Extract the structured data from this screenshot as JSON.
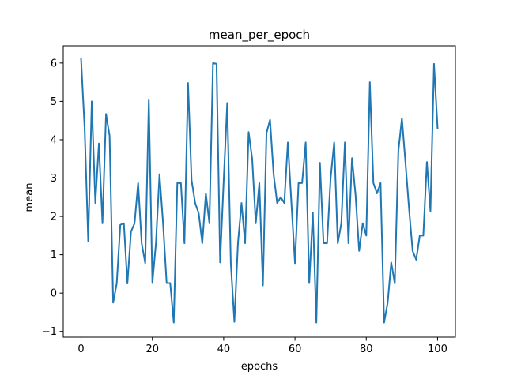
{
  "chart_data": {
    "type": "line",
    "title": "mean_per_epoch",
    "xlabel": "epochs",
    "ylabel": "mean",
    "xlim": [
      -5,
      105
    ],
    "ylim": [
      -1.15,
      6.45
    ],
    "x_ticks": [
      0,
      20,
      40,
      60,
      80,
      100
    ],
    "y_ticks": [
      -1,
      0,
      1,
      2,
      3,
      4,
      5,
      6
    ],
    "grid": false,
    "line_color": "#1f77b4",
    "series": [
      {
        "values": [
          6.1,
          4.3,
          1.35,
          5.0,
          2.35,
          3.9,
          1.82,
          4.67,
          4.1,
          -0.25,
          0.25,
          1.78,
          1.82,
          0.25,
          1.6,
          1.82,
          2.87,
          1.3,
          0.78,
          5.03,
          0.26,
          1.3,
          3.1,
          1.82,
          0.26,
          0.26,
          -0.77,
          2.87,
          2.87,
          1.3,
          5.48,
          2.94,
          2.35,
          2.08,
          1.3,
          2.6,
          1.82,
          6.0,
          5.98,
          0.8,
          2.93,
          4.96,
          0.78,
          -0.75,
          1.3,
          2.35,
          1.3,
          4.2,
          3.5,
          1.82,
          2.87,
          0.2,
          4.17,
          4.52,
          3.1,
          2.35,
          2.5,
          2.35,
          3.93,
          2.35,
          0.78,
          2.87,
          2.87,
          3.93,
          0.26,
          2.1,
          -0.77,
          3.4,
          1.3,
          1.3,
          3.0,
          3.93,
          1.3,
          1.82,
          3.93,
          1.3,
          3.52,
          2.55,
          1.1,
          1.82,
          1.5,
          5.5,
          2.87,
          2.6,
          2.87,
          -0.77,
          -0.25,
          0.8,
          0.25,
          3.7,
          4.56,
          3.4,
          2.2,
          1.1,
          0.87,
          1.5,
          1.5,
          3.42,
          2.14,
          5.98,
          4.3
        ]
      }
    ]
  }
}
